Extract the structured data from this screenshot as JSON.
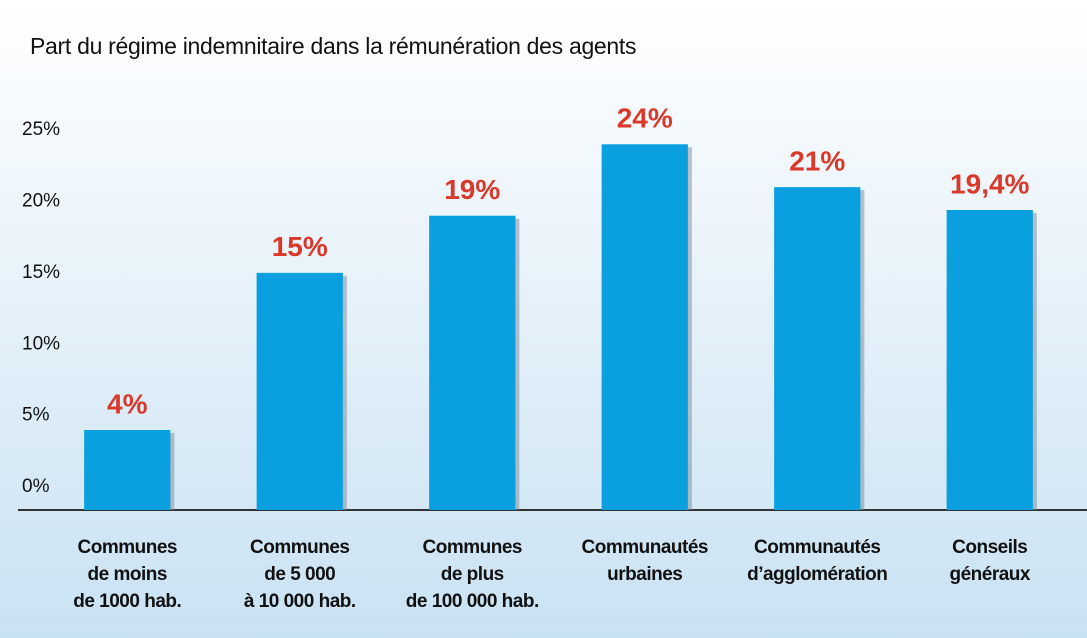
{
  "chart_data": {
    "type": "bar",
    "title": "Part du régime indemnitaire dans la rémunération des agents",
    "categories": [
      [
        "Communes",
        "de moins",
        "de 1000 hab."
      ],
      [
        "Communes",
        "de 5 000",
        "à 10 000 hab."
      ],
      [
        "Communes",
        "de plus",
        "de 100 000 hab."
      ],
      [
        "Communautés",
        "urbaines"
      ],
      [
        "Communautés",
        "d’agglomération"
      ],
      [
        "Conseils",
        "généraux"
      ]
    ],
    "values": [
      4,
      15,
      19,
      24,
      21,
      19.4
    ],
    "value_labels": [
      "4%",
      "15%",
      "19%",
      "24%",
      "21%",
      "19,4%"
    ],
    "color": "#0aa0e0",
    "value_label_color": "#d9392b",
    "ylim": [
      -1.6,
      27.8
    ],
    "yticks": [
      {
        "value": 0,
        "label": "0%"
      },
      {
        "value": 5,
        "label": "5%"
      },
      {
        "value": 10,
        "label": "10%"
      },
      {
        "value": 15,
        "label": "15%"
      },
      {
        "value": 20,
        "label": "20%"
      },
      {
        "value": 25,
        "label": "25%"
      }
    ]
  }
}
